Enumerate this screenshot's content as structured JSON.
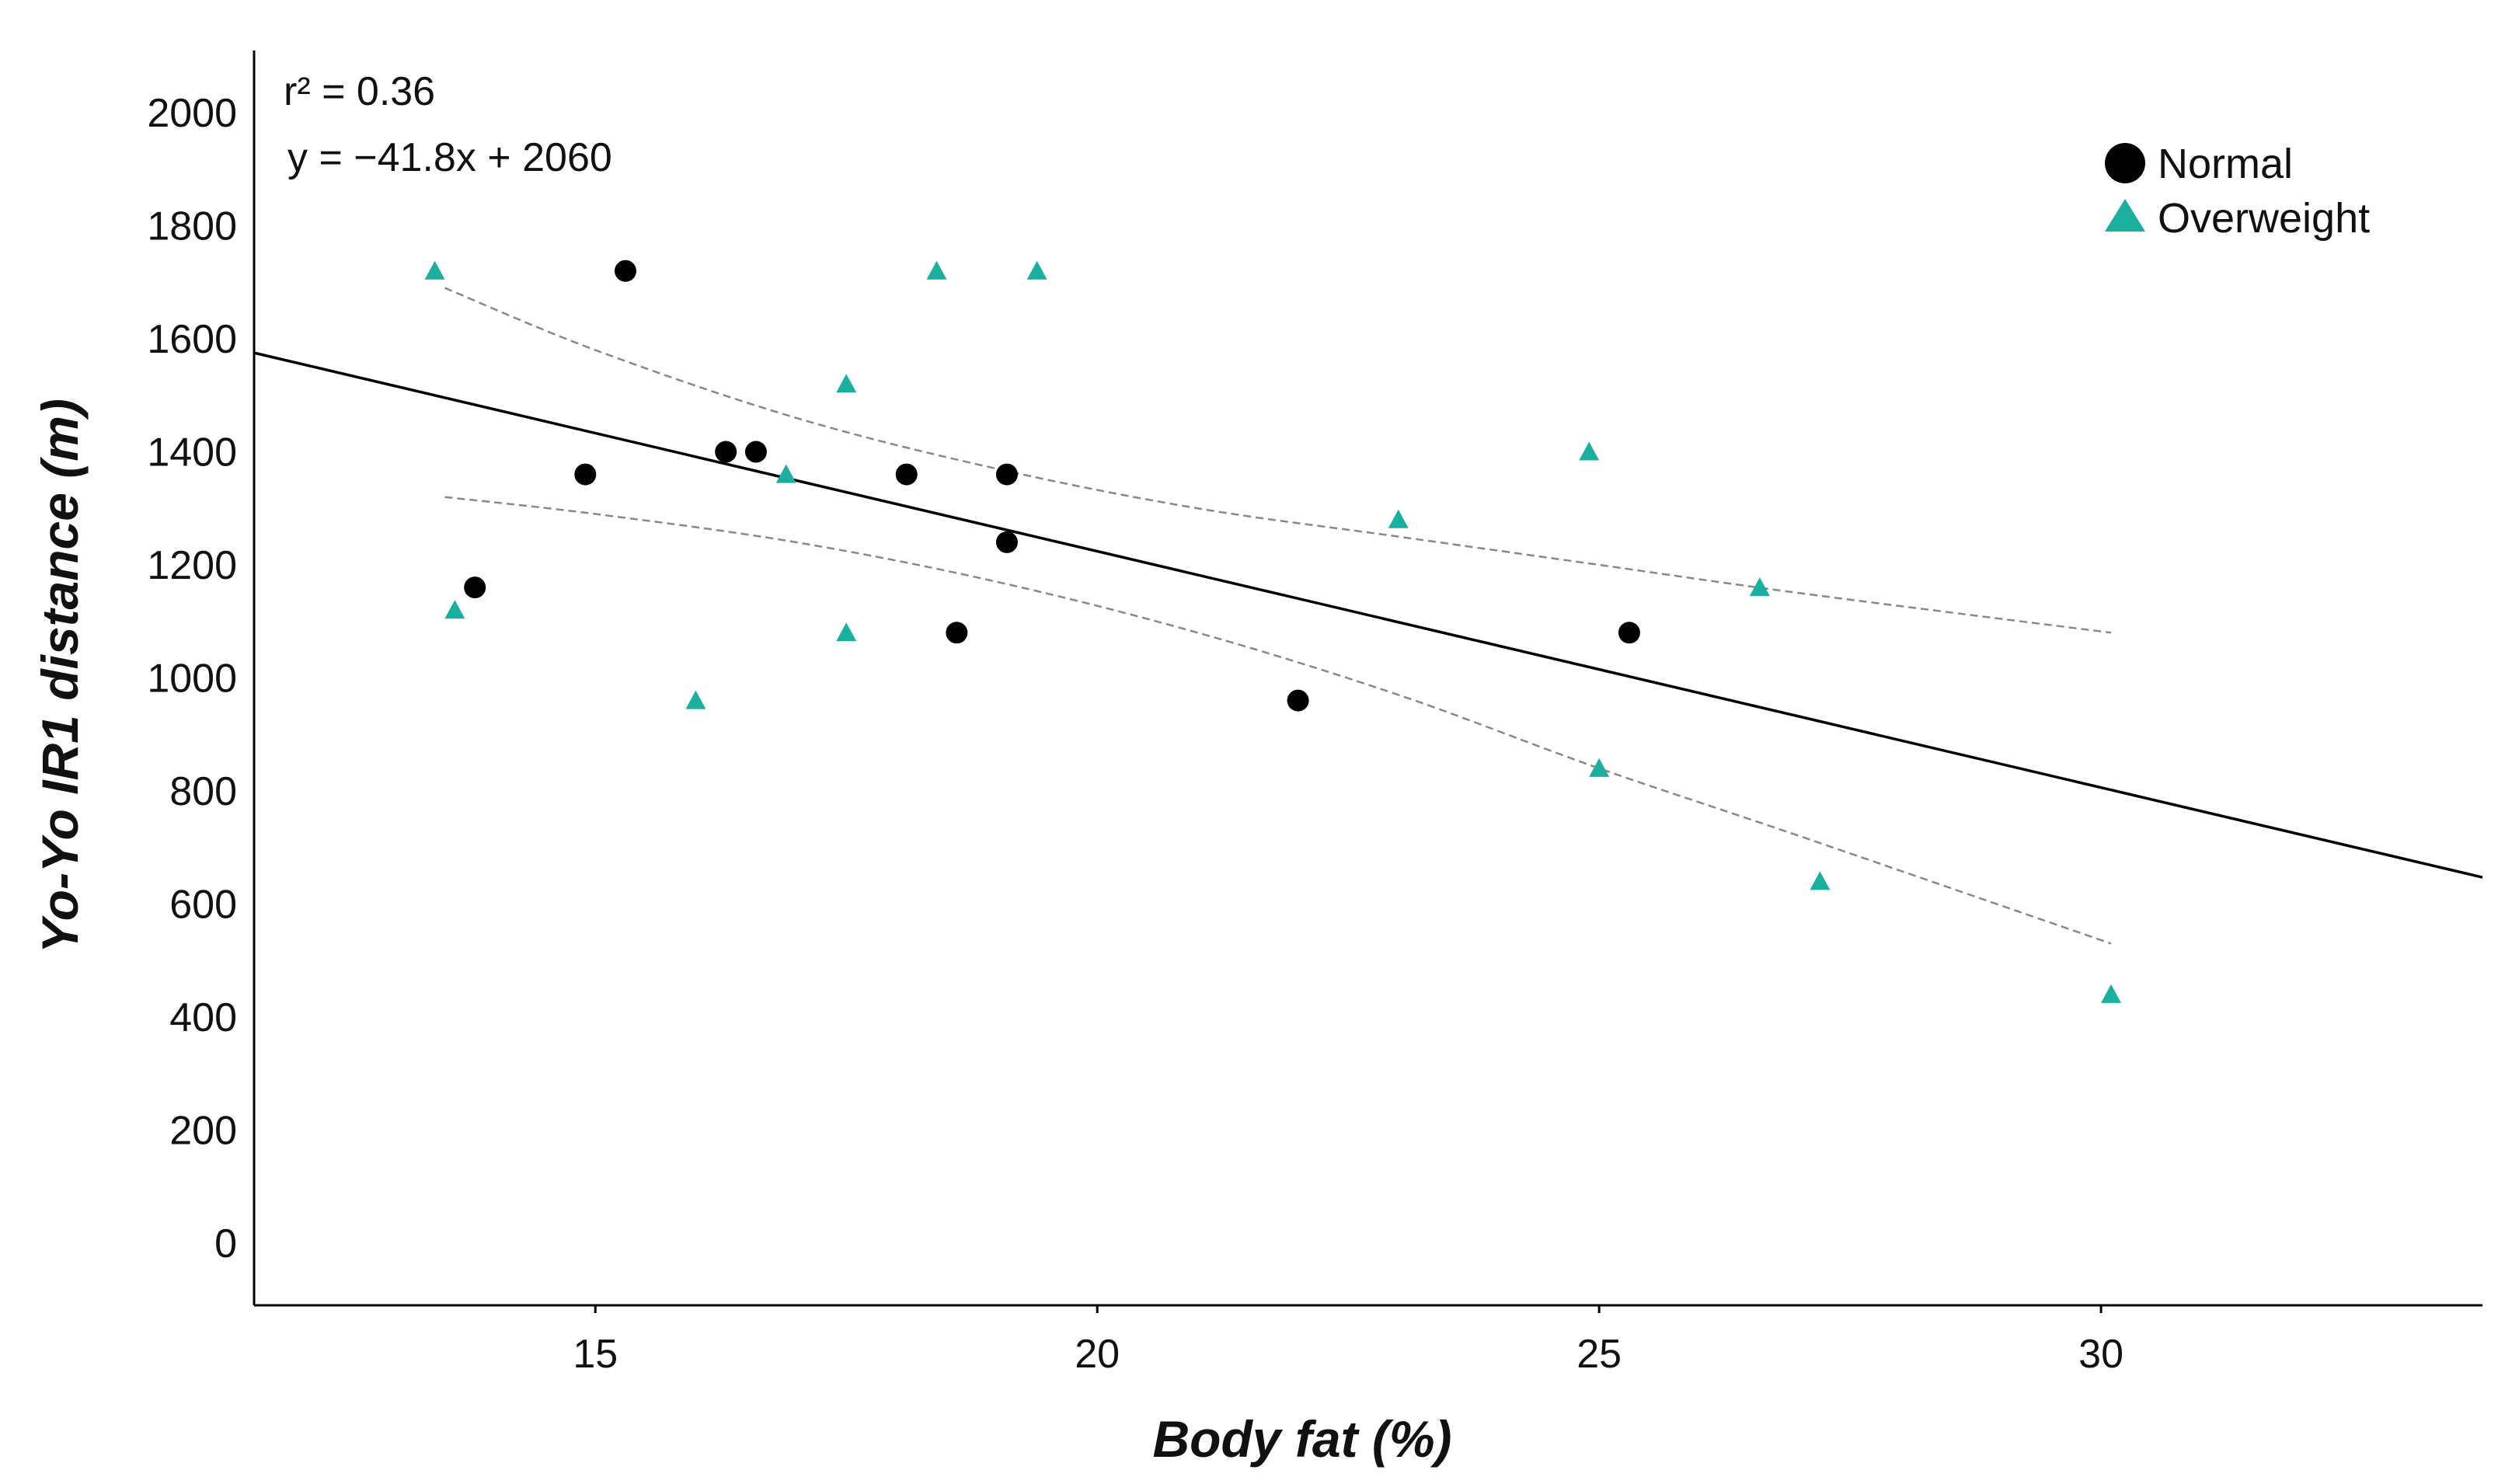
{
  "chart_data": {
    "type": "scatter",
    "title": "",
    "xlabel": "Body fat (%)",
    "ylabel": "Yo-Yo IR1 distance (m)",
    "xlim": [
      11.6,
      33.8
    ],
    "ylim": [
      -110,
      2110
    ],
    "xticks": [
      15,
      20,
      25,
      30
    ],
    "yticks": [
      0,
      200,
      400,
      600,
      800,
      1000,
      1200,
      1400,
      1600,
      1800,
      2000
    ],
    "grid": false,
    "legend_position": "top-right",
    "annotations": {
      "r2": "r² = 0.36",
      "equation": "y = −41.8x + 2060"
    },
    "regression": {
      "slope": -41.8,
      "intercept": 2060,
      "x_range": [
        11.6,
        33.8
      ]
    },
    "confidence_band": {
      "upper": {
        "x": [
          13.5,
          15,
          17,
          19,
          21,
          23,
          25,
          27,
          30.1
        ],
        "y": [
          1690,
          1580,
          1460,
          1370,
          1300,
          1250,
          1200,
          1150,
          1080
        ]
      },
      "lower": {
        "x": [
          13.5,
          15,
          17,
          19,
          21,
          23,
          25,
          27,
          30.1
        ],
        "y": [
          1320,
          1290,
          1240,
          1170,
          1080,
          970,
          840,
          720,
          530
        ]
      }
    },
    "series": [
      {
        "name": "Normal",
        "marker": "circle",
        "color": "#000000",
        "points": [
          {
            "x": 13.8,
            "y": 1160
          },
          {
            "x": 14.9,
            "y": 1360
          },
          {
            "x": 15.3,
            "y": 1720
          },
          {
            "x": 16.3,
            "y": 1400
          },
          {
            "x": 16.6,
            "y": 1400
          },
          {
            "x": 18.1,
            "y": 1360
          },
          {
            "x": 18.6,
            "y": 1080
          },
          {
            "x": 19.1,
            "y": 1360
          },
          {
            "x": 19.1,
            "y": 1240
          },
          {
            "x": 22.0,
            "y": 960
          },
          {
            "x": 25.3,
            "y": 1080
          }
        ]
      },
      {
        "name": "Overweight",
        "marker": "triangle",
        "color": "#1aaf9f",
        "points": [
          {
            "x": 13.4,
            "y": 1720
          },
          {
            "x": 13.6,
            "y": 1120
          },
          {
            "x": 16.0,
            "y": 960
          },
          {
            "x": 16.9,
            "y": 1360
          },
          {
            "x": 17.5,
            "y": 1520
          },
          {
            "x": 17.5,
            "y": 1080
          },
          {
            "x": 18.4,
            "y": 1720
          },
          {
            "x": 19.4,
            "y": 1720
          },
          {
            "x": 23.0,
            "y": 1280
          },
          {
            "x": 24.9,
            "y": 1400
          },
          {
            "x": 25.0,
            "y": 840
          },
          {
            "x": 26.6,
            "y": 1160
          },
          {
            "x": 27.2,
            "y": 640
          },
          {
            "x": 30.1,
            "y": 440
          }
        ]
      }
    ]
  }
}
